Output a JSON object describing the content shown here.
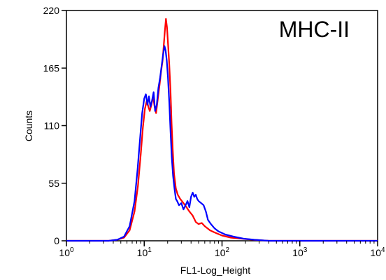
{
  "chart_data": {
    "type": "line",
    "title": "",
    "annotation": "MHC-II",
    "xlabel": "FL1-Log_Height",
    "ylabel": "Counts",
    "x_scale": "log",
    "xlim": [
      1,
      10000
    ],
    "ylim": [
      0,
      220
    ],
    "x_ticks": [
      {
        "value": 1,
        "base": "10",
        "exp": "0"
      },
      {
        "value": 10,
        "base": "10",
        "exp": "1"
      },
      {
        "value": 100,
        "base": "10",
        "exp": "2"
      },
      {
        "value": 1000,
        "base": "10",
        "exp": "3"
      },
      {
        "value": 10000,
        "base": "10",
        "exp": "4"
      }
    ],
    "y_ticks": [
      {
        "value": 0,
        "label": "0"
      },
      {
        "value": 55,
        "label": "55"
      },
      {
        "value": 110,
        "label": "110"
      },
      {
        "value": 165,
        "label": "165"
      },
      {
        "value": 220,
        "label": "220"
      }
    ],
    "grid": false,
    "legend": "none",
    "series": [
      {
        "color": "#ff0000",
        "points": [
          [
            1,
            0
          ],
          [
            3.5,
            0
          ],
          [
            4.5,
            1
          ],
          [
            5.5,
            3
          ],
          [
            6.5,
            10
          ],
          [
            7.5,
            28
          ],
          [
            8.3,
            52
          ],
          [
            9,
            82
          ],
          [
            9.6,
            108
          ],
          [
            10.2,
            126
          ],
          [
            10.8,
            134
          ],
          [
            11.3,
            128
          ],
          [
            11.8,
            124
          ],
          [
            12.4,
            130
          ],
          [
            13,
            138
          ],
          [
            13.6,
            128
          ],
          [
            14.2,
            122
          ],
          [
            15,
            136
          ],
          [
            15.8,
            150
          ],
          [
            16.5,
            162
          ],
          [
            17.2,
            172
          ],
          [
            17.8,
            186
          ],
          [
            18.4,
            200
          ],
          [
            19,
            212
          ],
          [
            19.6,
            204
          ],
          [
            20.3,
            186
          ],
          [
            21,
            168
          ],
          [
            21.8,
            142
          ],
          [
            22.5,
            112
          ],
          [
            23.3,
            86
          ],
          [
            24.2,
            64
          ],
          [
            25.5,
            50
          ],
          [
            27,
            44
          ],
          [
            29,
            40
          ],
          [
            32,
            36
          ],
          [
            35,
            32
          ],
          [
            38,
            28
          ],
          [
            42,
            24
          ],
          [
            46,
            18
          ],
          [
            50,
            16
          ],
          [
            55,
            17
          ],
          [
            60,
            14
          ],
          [
            70,
            10
          ],
          [
            80,
            8
          ],
          [
            100,
            5
          ],
          [
            130,
            3
          ],
          [
            180,
            2
          ],
          [
            250,
            1
          ],
          [
            400,
            0
          ],
          [
            10000,
            0
          ]
        ]
      },
      {
        "color": "#0000ff",
        "points": [
          [
            1,
            0
          ],
          [
            3.5,
            0
          ],
          [
            4.5,
            1
          ],
          [
            5.5,
            4
          ],
          [
            6.5,
            14
          ],
          [
            7.5,
            38
          ],
          [
            8.2,
            68
          ],
          [
            8.8,
            96
          ],
          [
            9.4,
            122
          ],
          [
            10,
            136
          ],
          [
            10.5,
            140
          ],
          [
            11,
            130
          ],
          [
            11.5,
            138
          ],
          [
            12,
            128
          ],
          [
            12.6,
            134
          ],
          [
            13.2,
            142
          ],
          [
            13.8,
            124
          ],
          [
            14.5,
            130
          ],
          [
            15.2,
            146
          ],
          [
            16,
            156
          ],
          [
            16.8,
            168
          ],
          [
            17.5,
            178
          ],
          [
            18.2,
            186
          ],
          [
            18.8,
            182
          ],
          [
            19.5,
            172
          ],
          [
            20.2,
            156
          ],
          [
            21,
            132
          ],
          [
            21.8,
            104
          ],
          [
            22.6,
            80
          ],
          [
            23.5,
            62
          ],
          [
            24.5,
            50
          ],
          [
            25.5,
            40
          ],
          [
            26.5,
            38
          ],
          [
            28,
            34
          ],
          [
            30,
            36
          ],
          [
            32,
            30
          ],
          [
            34,
            34
          ],
          [
            36,
            38
          ],
          [
            38,
            32
          ],
          [
            40,
            42
          ],
          [
            42,
            46
          ],
          [
            44,
            42
          ],
          [
            46,
            44
          ],
          [
            48,
            40
          ],
          [
            50,
            38
          ],
          [
            54,
            36
          ],
          [
            58,
            34
          ],
          [
            62,
            28
          ],
          [
            66,
            20
          ],
          [
            72,
            16
          ],
          [
            80,
            12
          ],
          [
            90,
            9
          ],
          [
            110,
            6
          ],
          [
            140,
            4
          ],
          [
            190,
            2
          ],
          [
            260,
            1
          ],
          [
            400,
            0
          ],
          [
            10000,
            0
          ]
        ]
      }
    ]
  }
}
